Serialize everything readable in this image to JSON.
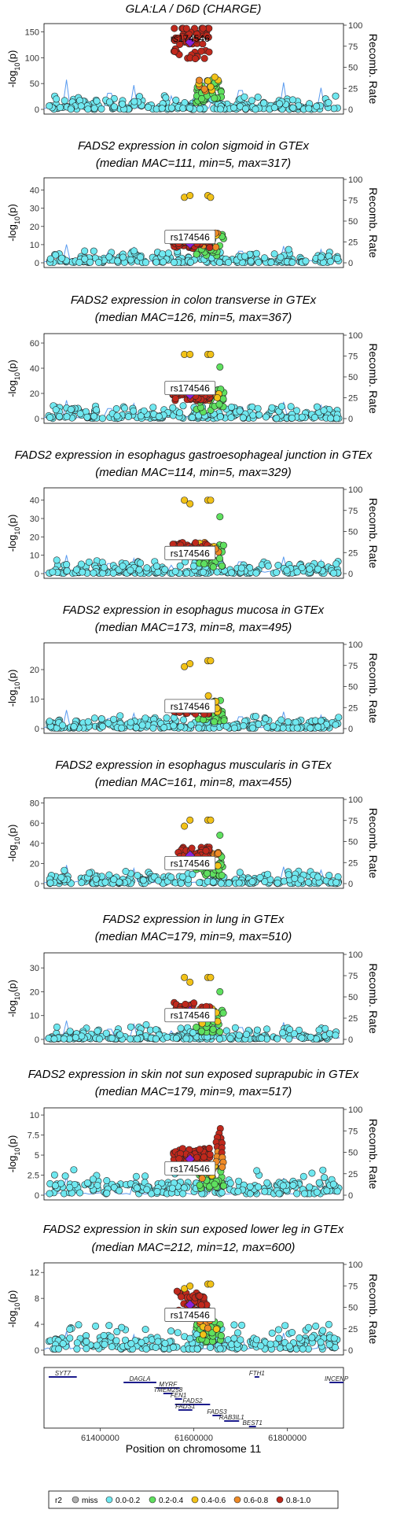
{
  "chart_data": {
    "type": "scatter",
    "x_range": [
      61280000,
      61920000
    ],
    "xlabel": "Position on chromosome 11",
    "x_ticks": [
      61400000,
      61600000,
      61800000
    ],
    "y_label_main": "-log",
    "y_label_sub": "10",
    "y_label_rest": "(p)",
    "y2_label": "Recomb. Rate",
    "y2_ticks": [
      0,
      25,
      50,
      75,
      100
    ],
    "lead_snp": "rs174546",
    "legend": {
      "title": "r2",
      "entries": [
        {
          "label": "miss",
          "color": "#b0b0b0"
        },
        {
          "label": "0.0-0.2",
          "color": "#6fe8f0"
        },
        {
          "label": "0.2-0.4",
          "color": "#5fe05f"
        },
        {
          "label": "0.4-0.6",
          "color": "#f2c218"
        },
        {
          "label": "0.6-0.8",
          "color": "#ee8a26"
        },
        {
          "label": "0.8-1.0",
          "color": "#c0281c"
        }
      ]
    },
    "panels": [
      {
        "title": [
          "GLA:LA / D6D (CHARGE)"
        ],
        "ymax": 160,
        "yticks": [
          0,
          50,
          100,
          150
        ],
        "lead_y": 130,
        "label_y": 137,
        "label_box": false,
        "tall": [],
        "peak_cols": [],
        "amp": 1
      },
      {
        "title": [
          "FADS2 expression in colon sigmoid in GTEx",
          "(median MAC=111, min=5, max=317)"
        ],
        "ymax": 45,
        "yticks": [
          0,
          10,
          20,
          30,
          40
        ],
        "lead_y": 10.5,
        "label_y": 14,
        "label_box": true,
        "tall": [
          [
            61580000,
            36
          ],
          [
            61592000,
            37
          ],
          [
            61630000,
            37
          ],
          [
            61636000,
            36
          ]
        ],
        "peak_cols": [],
        "amp": 1
      },
      {
        "title": [
          "FADS2 expression in colon transverse in GTEx",
          "(median MAC=126, min=5, max=367)"
        ],
        "ymax": 65,
        "yticks": [
          0,
          20,
          40,
          60
        ],
        "lead_y": 19,
        "label_y": 24,
        "label_box": true,
        "tall": [
          [
            61580000,
            51
          ],
          [
            61592000,
            51
          ],
          [
            61630000,
            51
          ],
          [
            61636000,
            51
          ],
          [
            61656000,
            41
          ]
        ],
        "peak_cols": [],
        "amp": 1
      },
      {
        "title": [
          "FADS2 expression in esophagus gastroesophageal junction in GTEx",
          "(median MAC=114, min=5, max=329)"
        ],
        "ymax": 45,
        "yticks": [
          0,
          10,
          20,
          30,
          40
        ],
        "lead_y": 13,
        "label_y": 11,
        "label_box": true,
        "tall": [
          [
            61580000,
            40
          ],
          [
            61592000,
            38
          ],
          [
            61630000,
            40
          ],
          [
            61636000,
            40
          ],
          [
            61656000,
            31
          ]
        ],
        "peak_cols": [],
        "amp": 1
      },
      {
        "title": [
          "FADS2 expression in esophagus mucosa in GTEx",
          "(median MAC=173, min=8, max=495)"
        ],
        "ymax": 28,
        "yticks": [
          0,
          10,
          20
        ],
        "lead_y": 6.5,
        "label_y": 7.5,
        "label_box": true,
        "tall": [
          [
            61580000,
            21
          ],
          [
            61592000,
            22
          ],
          [
            61630000,
            23
          ],
          [
            61636000,
            23
          ]
        ],
        "peak_cols": [],
        "amp": 1
      },
      {
        "title": [
          "FADS2 expression in esophagus muscularis in GTEx",
          "(median MAC=161, min=8, max=455)"
        ],
        "ymax": 82,
        "yticks": [
          0,
          20,
          40,
          60,
          80
        ],
        "lead_y": 28,
        "label_y": 20,
        "label_box": true,
        "tall": [
          [
            61580000,
            57
          ],
          [
            61592000,
            63
          ],
          [
            61630000,
            63
          ],
          [
            61636000,
            63
          ],
          [
            61656000,
            48
          ]
        ],
        "peak_cols": [],
        "amp": 1
      },
      {
        "title": [
          "FADS2 expression in lung in GTEx",
          "(median MAC=179, min=9, max=510)"
        ],
        "ymax": 35,
        "yticks": [
          0,
          10,
          20,
          30
        ],
        "lead_y": 12,
        "label_y": 10,
        "label_box": true,
        "tall": [
          [
            61580000,
            26
          ],
          [
            61592000,
            24
          ],
          [
            61630000,
            26
          ],
          [
            61636000,
            26
          ],
          [
            61656000,
            20
          ]
        ],
        "peak_cols": [],
        "amp": 1
      },
      {
        "title": [
          "FADS2 expression in skin not sun exposed suprapubic in GTEx",
          "(median MAC=179, min=9, max=517)"
        ],
        "ymax": 10.5,
        "yticks": [
          0.0,
          2.5,
          5.0,
          7.5,
          10.0
        ],
        "lead_y": 4.5,
        "label_y": 3.3,
        "label_box": true,
        "tall": [],
        "peak_cols": [
          [
            61656000,
            8.3
          ],
          [
            61650000,
            7.2
          ],
          [
            61662000,
            6.5
          ]
        ],
        "amp": 0.25
      },
      {
        "title": [
          "FADS2 expression in skin sun exposed lower leg in GTEx",
          "(median MAC=212, min=12, max=600)"
        ],
        "ymax": 13,
        "yticks": [
          0,
          4,
          8,
          12
        ],
        "lead_y": 7,
        "label_y": 5.4,
        "label_box": true,
        "tall": [
          [
            61580000,
            9.5
          ],
          [
            61592000,
            9.9
          ],
          [
            61630000,
            10.2
          ],
          [
            61636000,
            10.2
          ]
        ],
        "peak_cols": [],
        "amp": 0.45
      }
    ],
    "genes": [
      {
        "name": "SYT7",
        "start": 61290000,
        "end": 61350000,
        "row": 0
      },
      {
        "name": "DAGLA",
        "start": 61450000,
        "end": 61520000,
        "row": 1
      },
      {
        "name": "MYRF",
        "start": 61520000,
        "end": 61570000,
        "row": 2
      },
      {
        "name": "TMEM258",
        "start": 61535000,
        "end": 61555000,
        "row": 3
      },
      {
        "name": "FEN1",
        "start": 61560000,
        "end": 61575000,
        "row": 4
      },
      {
        "name": "FADS2",
        "start": 61560000,
        "end": 61635000,
        "row": 5
      },
      {
        "name": "FADS1",
        "start": 61567000,
        "end": 61597000,
        "row": 6
      },
      {
        "name": "FTH1",
        "start": 61730000,
        "end": 61740000,
        "row": 0
      },
      {
        "name": "INCENP",
        "start": 61890000,
        "end": 61920000,
        "row": 1
      },
      {
        "name": "FADS3",
        "start": 61640000,
        "end": 61659000,
        "row": 7
      },
      {
        "name": "RAB3IL1",
        "start": 61665000,
        "end": 61697000,
        "row": 8
      },
      {
        "name": "BEST1",
        "start": 61718000,
        "end": 61733000,
        "row": 9
      }
    ]
  }
}
